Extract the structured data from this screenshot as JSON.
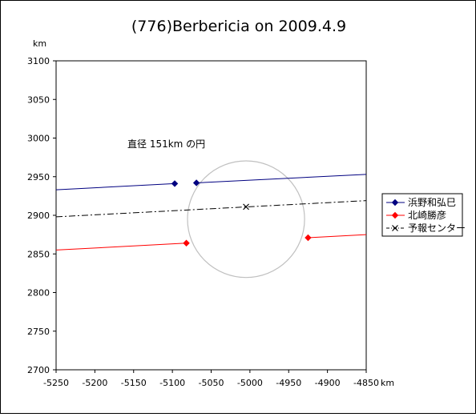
{
  "chart_data": {
    "type": "line",
    "title": "(776)Berbericia on 2009.4.9",
    "xunit": "km",
    "yunit": "km",
    "xlim": [
      -5250,
      -4850
    ],
    "ylim": [
      2700,
      3100
    ],
    "xticks": [
      -5250,
      -5200,
      -5150,
      -5100,
      -5050,
      -5000,
      -4950,
      -4900,
      -4850
    ],
    "yticks": [
      2700,
      2750,
      2800,
      2850,
      2900,
      2950,
      3000,
      3050,
      3100
    ],
    "grid": false,
    "legend_position": "right",
    "annotation": "直径 151km の円",
    "circle": {
      "center": [
        -5005,
        2895
      ],
      "diameter": 151,
      "color": "#c0c0c0"
    },
    "series": [
      {
        "name": "浜野和弘巳",
        "color": "#000080",
        "marker": "diamond",
        "segments": [
          [
            [
              -5250,
              2933
            ],
            [
              -5097,
              2941
            ]
          ],
          [
            [
              -5069,
              2942
            ],
            [
              -4850,
              2953
            ]
          ]
        ],
        "markers": [
          [
            -5097,
            2941
          ],
          [
            -5069,
            2942
          ]
        ]
      },
      {
        "name": "北崎勝彦",
        "color": "#ff0000",
        "marker": "diamond",
        "segments": [
          [
            [
              -5250,
              2855
            ],
            [
              -5082,
              2864
            ]
          ],
          [
            [
              -4925,
              2871
            ],
            [
              -4850,
              2875
            ]
          ]
        ],
        "markers": [
          [
            -5082,
            2864
          ],
          [
            -4925,
            2871
          ]
        ]
      },
      {
        "name": "予報センター",
        "color": "#000000",
        "marker": "x",
        "dash": "8,3,2,3",
        "segments": [
          [
            [
              -5250,
              2898
            ],
            [
              -4850,
              2919
            ]
          ]
        ],
        "markers": [
          [
            -5005,
            2911
          ]
        ]
      }
    ]
  }
}
